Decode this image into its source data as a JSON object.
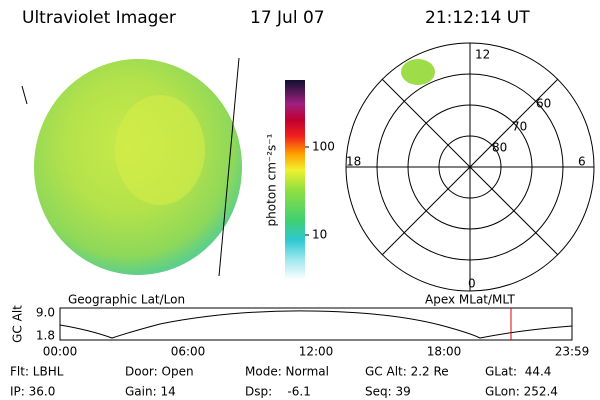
{
  "header": {
    "title": "Ultraviolet Imager",
    "date": "17 Jul 07",
    "time": "21:12:14 UT"
  },
  "colorbar": {
    "label": "photon cm⁻²s⁻¹",
    "ticks": [
      "100",
      "10"
    ]
  },
  "polar": {
    "mlt_labels": [
      "12",
      "18",
      "6",
      "0"
    ],
    "lat_labels": [
      "60",
      "70",
      "80"
    ]
  },
  "panel_labels": [
    "Geographic Lat/Lon",
    "Apex MLat/MLT"
  ],
  "altitude_plot": {
    "label": "GC Alt",
    "y_labels": [
      "9.0",
      "1.8"
    ],
    "x_labels": [
      "00:00",
      "06:00",
      "12:00",
      "18:00",
      "23:59"
    ]
  },
  "info": [
    [
      "Flt: LBHL",
      "Door: Open",
      "Mode: Normal",
      "GC Alt: 2.2 Re",
      "GLat:  44.4"
    ],
    [
      "IP: 36.0",
      "Gain: 14",
      "Dsp:    -6.1",
      "Seq: 39",
      "GLon: 252.4"
    ]
  ]
}
